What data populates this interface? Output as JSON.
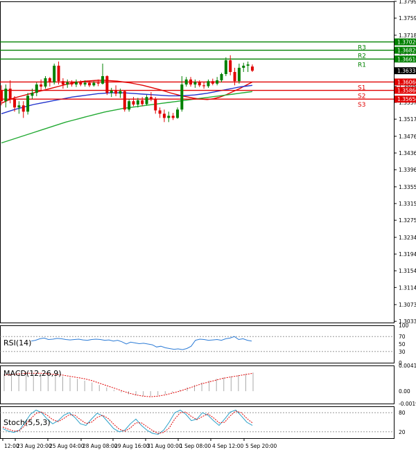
{
  "chart_data": [
    {
      "type": "candlestick",
      "panel": "price",
      "ylim": [
        1.303,
        1.3799
      ],
      "y_ticks": [
        "1.37990",
        "1.37590",
        "1.37180",
        "1.36770",
        "1.36360",
        "1.35950",
        "1.35570",
        "1.35170",
        "1.34760",
        "1.34360",
        "1.33960",
        "1.33550",
        "1.33150",
        "1.32750",
        "1.32340",
        "1.31940",
        "1.31540",
        "1.31140",
        "1.30730",
        "1.30330"
      ],
      "x_labels": [
        "12:00",
        "23 Aug 20:00",
        "25 Aug 04:00",
        "28 Aug 08:00",
        "29 Aug 16:00",
        "31 Aug 00:00",
        "1 Sep 08:00",
        "4 Sep 12:00",
        "5 Sep 20:00"
      ],
      "levels": [
        {
          "name": "R3",
          "value": 1.3702,
          "price_label": "1.37020",
          "color": "#008000"
        },
        {
          "name": "R2",
          "value": 1.3682,
          "price_label": "1.36820",
          "color": "#008000"
        },
        {
          "name": "R1",
          "value": 1.3661,
          "price_label": "1.36610",
          "color": "#008000"
        },
        {
          "name": "S1",
          "value": 1.3606,
          "price_label": "1.36060",
          "color": "#e00000"
        },
        {
          "name": "S2",
          "value": 1.3586,
          "price_label": "1.35860",
          "color": "#e00000"
        },
        {
          "name": "S3",
          "value": 1.3565,
          "price_label": "1.35650",
          "color": "#e00000"
        }
      ],
      "current_price": {
        "value": 1.3633,
        "label": "1.36331"
      },
      "candles": [
        {
          "o": 1.3585,
          "h": 1.3598,
          "l": 1.355,
          "c": 1.356
        },
        {
          "o": 1.356,
          "h": 1.36,
          "l": 1.3545,
          "c": 1.359
        },
        {
          "o": 1.359,
          "h": 1.361,
          "l": 1.3555,
          "c": 1.3565
        },
        {
          "o": 1.3565,
          "h": 1.3572,
          "l": 1.3535,
          "c": 1.3545
        },
        {
          "o": 1.3545,
          "h": 1.356,
          "l": 1.353,
          "c": 1.355
        },
        {
          "o": 1.355,
          "h": 1.356,
          "l": 1.352,
          "c": 1.3535
        },
        {
          "o": 1.3535,
          "h": 1.358,
          "l": 1.3528,
          "c": 1.3573
        },
        {
          "o": 1.3573,
          "h": 1.359,
          "l": 1.3565,
          "c": 1.358
        },
        {
          "o": 1.358,
          "h": 1.3605,
          "l": 1.3572,
          "c": 1.36
        },
        {
          "o": 1.36,
          "h": 1.3612,
          "l": 1.3585,
          "c": 1.3595
        },
        {
          "o": 1.3595,
          "h": 1.362,
          "l": 1.359,
          "c": 1.3615
        },
        {
          "o": 1.3615,
          "h": 1.3618,
          "l": 1.3595,
          "c": 1.3605
        },
        {
          "o": 1.3605,
          "h": 1.365,
          "l": 1.36,
          "c": 1.3645
        },
        {
          "o": 1.3645,
          "h": 1.3655,
          "l": 1.36,
          "c": 1.3608
        },
        {
          "o": 1.3608,
          "h": 1.3615,
          "l": 1.359,
          "c": 1.36
        },
        {
          "o": 1.36,
          "h": 1.3612,
          "l": 1.3592,
          "c": 1.3605
        },
        {
          "o": 1.3605,
          "h": 1.361,
          "l": 1.3595,
          "c": 1.36
        },
        {
          "o": 1.36,
          "h": 1.3612,
          "l": 1.3594,
          "c": 1.3606
        },
        {
          "o": 1.3606,
          "h": 1.361,
          "l": 1.3596,
          "c": 1.36
        },
        {
          "o": 1.36,
          "h": 1.361,
          "l": 1.3595,
          "c": 1.3604
        },
        {
          "o": 1.3604,
          "h": 1.3608,
          "l": 1.3594,
          "c": 1.3598
        },
        {
          "o": 1.3598,
          "h": 1.3608,
          "l": 1.3595,
          "c": 1.3604
        },
        {
          "o": 1.3604,
          "h": 1.3612,
          "l": 1.3596,
          "c": 1.3602
        },
        {
          "o": 1.3602,
          "h": 1.365,
          "l": 1.36,
          "c": 1.362
        },
        {
          "o": 1.362,
          "h": 1.3622,
          "l": 1.3575,
          "c": 1.358
        },
        {
          "o": 1.358,
          "h": 1.3592,
          "l": 1.357,
          "c": 1.3585
        },
        {
          "o": 1.3585,
          "h": 1.3598,
          "l": 1.3572,
          "c": 1.3578
        },
        {
          "o": 1.3578,
          "h": 1.359,
          "l": 1.3568,
          "c": 1.3584
        },
        {
          "o": 1.3584,
          "h": 1.3586,
          "l": 1.3535,
          "c": 1.354
        },
        {
          "o": 1.354,
          "h": 1.3565,
          "l": 1.3535,
          "c": 1.356
        },
        {
          "o": 1.356,
          "h": 1.357,
          "l": 1.3548,
          "c": 1.3552
        },
        {
          "o": 1.3552,
          "h": 1.3568,
          "l": 1.3545,
          "c": 1.3562
        },
        {
          "o": 1.3562,
          "h": 1.357,
          "l": 1.3548,
          "c": 1.3553
        },
        {
          "o": 1.3553,
          "h": 1.3575,
          "l": 1.355,
          "c": 1.357
        },
        {
          "o": 1.357,
          "h": 1.3582,
          "l": 1.356,
          "c": 1.3565
        },
        {
          "o": 1.3565,
          "h": 1.357,
          "l": 1.353,
          "c": 1.3538
        },
        {
          "o": 1.3538,
          "h": 1.3545,
          "l": 1.352,
          "c": 1.353
        },
        {
          "o": 1.353,
          "h": 1.354,
          "l": 1.351,
          "c": 1.352
        },
        {
          "o": 1.352,
          "h": 1.3535,
          "l": 1.351,
          "c": 1.3525
        },
        {
          "o": 1.3525,
          "h": 1.3532,
          "l": 1.3515,
          "c": 1.352
        },
        {
          "o": 1.352,
          "h": 1.3545,
          "l": 1.3518,
          "c": 1.354
        },
        {
          "o": 1.354,
          "h": 1.362,
          "l": 1.3535,
          "c": 1.36
        },
        {
          "o": 1.36,
          "h": 1.3618,
          "l": 1.3595,
          "c": 1.3612
        },
        {
          "o": 1.3612,
          "h": 1.3618,
          "l": 1.3595,
          "c": 1.36
        },
        {
          "o": 1.36,
          "h": 1.3612,
          "l": 1.3592,
          "c": 1.3606
        },
        {
          "o": 1.3606,
          "h": 1.361,
          "l": 1.3594,
          "c": 1.3598
        },
        {
          "o": 1.3598,
          "h": 1.3606,
          "l": 1.359,
          "c": 1.3596
        },
        {
          "o": 1.3596,
          "h": 1.3612,
          "l": 1.3592,
          "c": 1.3608
        },
        {
          "o": 1.3608,
          "h": 1.3614,
          "l": 1.3598,
          "c": 1.3602
        },
        {
          "o": 1.3602,
          "h": 1.3618,
          "l": 1.3598,
          "c": 1.361
        },
        {
          "o": 1.361,
          "h": 1.3628,
          "l": 1.3605,
          "c": 1.3625
        },
        {
          "o": 1.3625,
          "h": 1.3665,
          "l": 1.362,
          "c": 1.3658
        },
        {
          "o": 1.3658,
          "h": 1.367,
          "l": 1.3622,
          "c": 1.363
        },
        {
          "o": 1.363,
          "h": 1.364,
          "l": 1.3598,
          "c": 1.3608
        },
        {
          "o": 1.3608,
          "h": 1.365,
          "l": 1.3602,
          "c": 1.364
        },
        {
          "o": 1.364,
          "h": 1.3652,
          "l": 1.363,
          "c": 1.3645
        },
        {
          "o": 1.3645,
          "h": 1.3655,
          "l": 1.363,
          "c": 1.3648
        },
        {
          "o": 1.3643,
          "h": 1.3648,
          "l": 1.363,
          "c": 1.3633
        }
      ],
      "moving_averages": [
        {
          "color": "#e00000",
          "points": [
            1.3555,
            1.3562,
            1.3568,
            1.3572,
            1.3576,
            1.358,
            1.3584,
            1.3588,
            1.3592,
            1.3596,
            1.36,
            1.3603,
            1.3606,
            1.3608,
            1.3609,
            1.361,
            1.361,
            1.3609,
            1.3608,
            1.3606,
            1.3604,
            1.3601,
            1.3598,
            1.3594,
            1.359,
            1.3586,
            1.3581,
            1.3577,
            1.3573,
            1.357,
            1.3567,
            1.3565,
            1.3564,
            1.3566,
            1.357,
            1.3576,
            1.3583,
            1.359,
            1.3598,
            1.3606
          ]
        },
        {
          "color": "#2233cc",
          "points": [
            1.353,
            1.3535,
            1.354,
            1.3544,
            1.3548,
            1.3552,
            1.3555,
            1.3558,
            1.3561,
            1.3564,
            1.3567,
            1.357,
            1.3572,
            1.3574,
            1.3576,
            1.3578,
            1.3579,
            1.358,
            1.358,
            1.358,
            1.3579,
            1.3578,
            1.3577,
            1.3576,
            1.3575,
            1.3574,
            1.3573,
            1.3573,
            1.3573,
            1.3574,
            1.3575,
            1.3577,
            1.3579,
            1.3582,
            1.3585,
            1.3588,
            1.3591,
            1.3594,
            1.3596,
            1.3598
          ]
        },
        {
          "color": "#22aa33",
          "points": [
            1.346,
            1.3465,
            1.347,
            1.3475,
            1.348,
            1.3485,
            1.349,
            1.3495,
            1.35,
            1.3505,
            1.351,
            1.3514,
            1.3518,
            1.3522,
            1.3526,
            1.353,
            1.3534,
            1.3537,
            1.354,
            1.3543,
            1.3545,
            1.3547,
            1.3549,
            1.3551,
            1.3553,
            1.3555,
            1.3557,
            1.3559,
            1.3561,
            1.3563,
            1.3565,
            1.3567,
            1.3569,
            1.3571,
            1.3573,
            1.3575,
            1.3577,
            1.3579,
            1.3581,
            1.3583
          ]
        }
      ]
    },
    {
      "type": "line",
      "panel": "RSI",
      "title": "RSI(14)",
      "y_ticks": [
        "100",
        "70",
        "50",
        "30",
        "0"
      ],
      "ylim": [
        0,
        100
      ],
      "values": [
        58,
        60,
        64,
        66,
        62,
        63,
        65,
        64,
        62,
        61,
        62,
        63,
        61,
        60,
        62,
        63,
        62,
        60,
        61,
        58,
        60,
        56,
        50,
        55,
        53,
        51,
        52,
        50,
        48,
        42,
        44,
        40,
        38,
        36,
        37,
        35,
        38,
        44,
        60,
        63,
        62,
        60,
        61,
        62,
        60,
        64,
        66,
        70,
        62,
        64,
        60,
        58
      ]
    },
    {
      "type": "bar",
      "panel": "MACD",
      "title": "MACD(12,26,9)",
      "y_ticks": [
        "0.004151",
        "0.00",
        "-0.001995"
      ],
      "ylim": [
        -0.002,
        0.00415
      ],
      "histogram": [
        0.0028,
        0.0029,
        0.003,
        0.003,
        0.0029,
        0.0028,
        0.0027,
        0.0026,
        0.0024,
        0.0022,
        0.002,
        0.0017,
        0.0014,
        0.001,
        0.0006,
        0.0002,
        -0.0002,
        -0.0005,
        -0.0007,
        -0.0008,
        -0.0008,
        -0.0007,
        -0.0005,
        -0.0002,
        0.0002,
        0.0006,
        0.001,
        0.0014,
        0.0017,
        0.002,
        0.0022,
        0.0024,
        0.0026,
        0.0028,
        0.003
      ],
      "signal": [
        0.0026,
        0.0027,
        0.0028,
        0.0029,
        0.0029,
        0.0029,
        0.0028,
        0.0027,
        0.0026,
        0.0024,
        0.0022,
        0.002,
        0.0017,
        0.0013,
        0.0009,
        0.0005,
        0.0001,
        -0.0003,
        -0.0006,
        -0.0008,
        -0.0009,
        -0.0008,
        -0.0006,
        -0.0003,
        0.0,
        0.0004,
        0.0008,
        0.0012,
        0.0015,
        0.0018,
        0.0021,
        0.0023,
        0.0025,
        0.0027,
        0.0029
      ]
    },
    {
      "type": "line",
      "panel": "Stoch",
      "title": "Stoch(5,5,3)",
      "y_ticks": [
        "80",
        "20"
      ],
      "ylim": [
        0,
        100
      ],
      "main": [
        30,
        22,
        18,
        25,
        50,
        75,
        88,
        80,
        60,
        45,
        55,
        72,
        80,
        65,
        45,
        40,
        60,
        78,
        70,
        50,
        30,
        20,
        25,
        45,
        60,
        40,
        25,
        15,
        12,
        25,
        50,
        80,
        88,
        75,
        55,
        60,
        80,
        72,
        55,
        40,
        60,
        82,
        88,
        70,
        50,
        40
      ],
      "signal": [
        35,
        28,
        22,
        24,
        40,
        60,
        78,
        82,
        72,
        58,
        52,
        62,
        74,
        72,
        58,
        46,
        50,
        65,
        72,
        62,
        44,
        28,
        22,
        32,
        48,
        48,
        36,
        24,
        15,
        18,
        32,
        60,
        80,
        82,
        68,
        58,
        68,
        76,
        64,
        48,
        50,
        70,
        85,
        80,
        62,
        48
      ]
    }
  ]
}
